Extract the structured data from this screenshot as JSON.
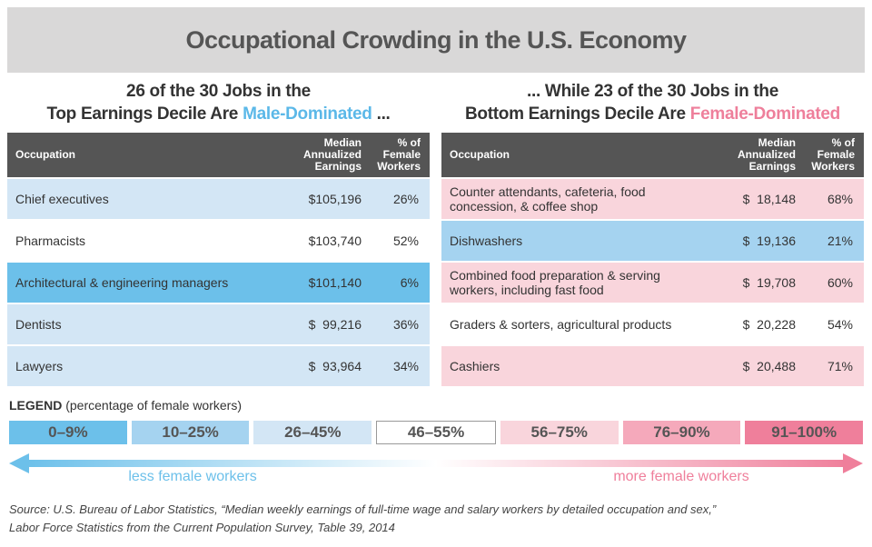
{
  "title": "Occupational Crowding in the U.S. Economy",
  "left": {
    "heading": {
      "line1": "26 of the 30 Jobs in the",
      "line2": "Top Earnings Decile Are",
      "highlight": "Male-Dominated",
      "highlight_color": "#5bb8e8",
      "after": "..."
    },
    "columns": [
      "Occupation",
      "Median Annualized Earnings",
      "% of Female Workers"
    ],
    "rows": [
      {
        "occupation": "Chief executives",
        "earnings": "$105,196",
        "female_share": "26%",
        "color": "#d3e6f5"
      },
      {
        "occupation": "Pharmacists",
        "earnings": "$103,740",
        "female_share": "52%",
        "color": "#ffffff"
      },
      {
        "occupation": "Architectural & engineering managers",
        "earnings": "$101,140",
        "female_share": "6%",
        "color": "#6cc0ea"
      },
      {
        "occupation": "Dentists",
        "earnings": "$  99,216",
        "female_share": "36%",
        "color": "#d3e6f5"
      },
      {
        "occupation": "Lawyers",
        "earnings": "$  93,964",
        "female_share": "34%",
        "color": "#d3e6f5"
      }
    ]
  },
  "right": {
    "heading": {
      "line1": "... While 23 of the 30 Jobs in the",
      "line2": "Bottom Earnings Decile Are",
      "highlight": "Female-Dominated",
      "highlight_color": "#ee7f9b",
      "after": ""
    },
    "columns": [
      "Occupation",
      "Median Annualized Earnings",
      "% of Female Workers"
    ],
    "rows": [
      {
        "occupation": "Counter attendants, cafeteria, food concession, & coffee shop",
        "earnings": "$  18,148",
        "female_share": "68%",
        "color": "#f9d5dc"
      },
      {
        "occupation": "Dishwashers",
        "earnings": "$  19,136",
        "female_share": "21%",
        "color": "#a5d3f0"
      },
      {
        "occupation": "Combined food preparation & serving workers, including fast food",
        "earnings": "$  19,708",
        "female_share": "60%",
        "color": "#f9d5dc"
      },
      {
        "occupation": "Graders & sorters, agricultural products",
        "earnings": "$  20,228",
        "female_share": "54%",
        "color": "#ffffff"
      },
      {
        "occupation": "Cashiers",
        "earnings": "$  20,488",
        "female_share": "71%",
        "color": "#f9d5dc"
      }
    ]
  },
  "legend": {
    "label": "LEGEND",
    "note": "(percentage of female workers)",
    "items": [
      {
        "label": "0–9%",
        "color": "#6cc0ea"
      },
      {
        "label": "10–25%",
        "color": "#a5d3f0"
      },
      {
        "label": "26–45%",
        "color": "#d3e6f5"
      },
      {
        "label": "46–55%",
        "color": "#ffffff"
      },
      {
        "label": "56–75%",
        "color": "#f9d5dc"
      },
      {
        "label": "76–90%",
        "color": "#f5a9bb"
      },
      {
        "label": "91–100%",
        "color": "#ef7f9b"
      }
    ],
    "low_label": "less female workers",
    "high_label": "more female workers"
  },
  "source": {
    "line1": "Source: U.S. Bureau of Labor Statistics, “Median weekly earnings of full-time wage and salary workers by detailed occupation and sex,”",
    "line2": "Labor Force Statistics from the Current Population Survey, Table 39, 2014"
  }
}
